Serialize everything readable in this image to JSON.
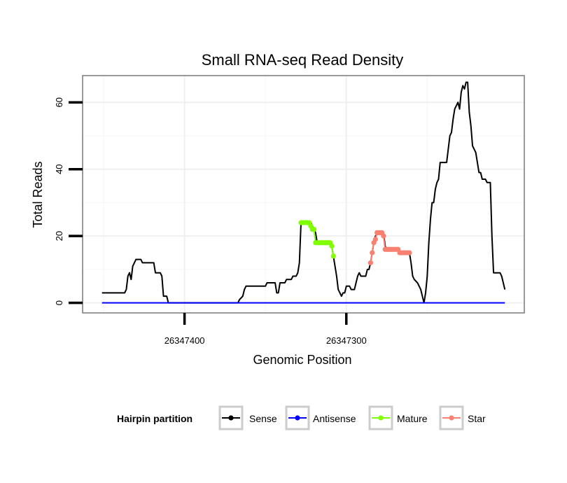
{
  "chart_data": {
    "type": "line",
    "title": "Small RNA-seq Read Density",
    "xlabel": "Genomic Position",
    "ylabel": "Total Reads",
    "xlim": [
      26347463,
      26347190
    ],
    "ylim": [
      -3,
      68
    ],
    "x_reversed": true,
    "x_ticks": [
      {
        "value": 26347400,
        "label": "26347400"
      },
      {
        "value": 26347300,
        "label": "26347300"
      }
    ],
    "y_ticks": [
      {
        "value": 0,
        "label": "0"
      },
      {
        "value": 20,
        "label": "20"
      },
      {
        "value": 40,
        "label": "40"
      },
      {
        "value": 60,
        "label": "60"
      }
    ],
    "grid": true,
    "legend": {
      "title": "Hairpin partition",
      "position": "bottom",
      "entries": [
        {
          "label": "Sense",
          "color": "#000000"
        },
        {
          "label": "Antisense",
          "color": "#0000ff"
        },
        {
          "label": "Mature",
          "color": "#7fff00"
        },
        {
          "label": "Star",
          "color": "#fa8072"
        }
      ]
    },
    "series": [
      {
        "name": "Sense",
        "color": "#000000",
        "style": "line",
        "points": [
          [
            26347451,
            3
          ],
          [
            26347437,
            3
          ],
          [
            26347436,
            4
          ],
          [
            26347435,
            8
          ],
          [
            26347434,
            9
          ],
          [
            26347433,
            7
          ],
          [
            26347432,
            11
          ],
          [
            26347431,
            12
          ],
          [
            26347430,
            13
          ],
          [
            26347427,
            13
          ],
          [
            26347426,
            12
          ],
          [
            26347419,
            12
          ],
          [
            26347418,
            9
          ],
          [
            26347415,
            9
          ],
          [
            26347414,
            8
          ],
          [
            26347413,
            2
          ],
          [
            26347411,
            2
          ],
          [
            26347410,
            0
          ],
          [
            26347380,
            0
          ],
          [
            26347367,
            0
          ],
          [
            26347366,
            1
          ],
          [
            26347364,
            2
          ],
          [
            26347363,
            4
          ],
          [
            26347362,
            5
          ],
          [
            26347350,
            5
          ],
          [
            26347349,
            6
          ],
          [
            26347344,
            6
          ],
          [
            26347343,
            3
          ],
          [
            26347342,
            3
          ],
          [
            26347341,
            6
          ],
          [
            26347338,
            6
          ],
          [
            26347337,
            7
          ],
          [
            26347334,
            7
          ],
          [
            26347333,
            8
          ],
          [
            26347331,
            8
          ],
          [
            26347330,
            9
          ],
          [
            26347329,
            12
          ],
          [
            26347328,
            24
          ],
          [
            26347322,
            24
          ],
          [
            26347320,
            22
          ],
          [
            26347319,
            21
          ],
          [
            26347318,
            18
          ],
          [
            26347310,
            18
          ],
          [
            26347309,
            17
          ],
          [
            26347308,
            14
          ],
          [
            26347306,
            8
          ],
          [
            26347305,
            4
          ],
          [
            26347304,
            3
          ],
          [
            26347303,
            2
          ],
          [
            26347302,
            3
          ],
          [
            26347301,
            3
          ],
          [
            26347300,
            5
          ],
          [
            26347298,
            5
          ],
          [
            26347297,
            4
          ],
          [
            26347295,
            4
          ],
          [
            26347294,
            6
          ],
          [
            26347293,
            8
          ],
          [
            26347292,
            9
          ],
          [
            26347291,
            8
          ],
          [
            26347288,
            8
          ],
          [
            26347287,
            10
          ],
          [
            26347286,
            10
          ],
          [
            26347285,
            12
          ],
          [
            26347284,
            15
          ],
          [
            26347283,
            18
          ],
          [
            26347282,
            20
          ],
          [
            26347280,
            21
          ],
          [
            26347277,
            21
          ],
          [
            26347276,
            17
          ],
          [
            26347275,
            16
          ],
          [
            26347268,
            16
          ],
          [
            26347267,
            15
          ],
          [
            26347261,
            15
          ],
          [
            26347260,
            12
          ],
          [
            26347259,
            8
          ],
          [
            26347258,
            7
          ],
          [
            26347256,
            6
          ],
          [
            26347254,
            4
          ],
          [
            26347253,
            2
          ],
          [
            26347252,
            0
          ],
          [
            26347251,
            3
          ],
          [
            26347250,
            8
          ],
          [
            26347249,
            18
          ],
          [
            26347248,
            25
          ],
          [
            26347247,
            30
          ],
          [
            26347246,
            30
          ],
          [
            26347245,
            34
          ],
          [
            26347244,
            36
          ],
          [
            26347243,
            37
          ],
          [
            26347242,
            42
          ],
          [
            26347238,
            42
          ],
          [
            26347237,
            46
          ],
          [
            26347236,
            50
          ],
          [
            26347235,
            51
          ],
          [
            26347234,
            55
          ],
          [
            26347233,
            58
          ],
          [
            26347232,
            59
          ],
          [
            26347231,
            60
          ],
          [
            26347230,
            58
          ],
          [
            26347229,
            63
          ],
          [
            26347228,
            65
          ],
          [
            26347227,
            64
          ],
          [
            26347226,
            66
          ],
          [
            26347225,
            66
          ],
          [
            26347224,
            57
          ],
          [
            26347223,
            53
          ],
          [
            26347222,
            47
          ],
          [
            26347221,
            46
          ],
          [
            26347220,
            45
          ],
          [
            26347219,
            42
          ],
          [
            26347218,
            39
          ],
          [
            26347217,
            39
          ],
          [
            26347216,
            37
          ],
          [
            26347214,
            37
          ],
          [
            26347213,
            36
          ],
          [
            26347211,
            36
          ],
          [
            26347210,
            20
          ],
          [
            26347209,
            9
          ],
          [
            26347205,
            9
          ],
          [
            26347204,
            8
          ],
          [
            26347203,
            6
          ],
          [
            26347202,
            4
          ]
        ]
      },
      {
        "name": "Antisense",
        "color": "#0000ff",
        "style": "line",
        "points": [
          [
            26347451,
            0
          ],
          [
            26347202,
            0
          ]
        ]
      },
      {
        "name": "Mature",
        "color": "#7fff00",
        "style": "line-points",
        "points": [
          [
            26347328,
            24
          ],
          [
            26347327,
            24
          ],
          [
            26347326,
            24
          ],
          [
            26347325,
            24
          ],
          [
            26347324,
            24
          ],
          [
            26347323,
            24
          ],
          [
            26347322,
            23
          ],
          [
            26347321,
            22
          ],
          [
            26347320,
            22
          ],
          [
            26347319,
            18
          ],
          [
            26347318,
            18
          ],
          [
            26347317,
            18
          ],
          [
            26347316,
            18
          ],
          [
            26347315,
            18
          ],
          [
            26347314,
            18
          ],
          [
            26347313,
            18
          ],
          [
            26347312,
            18
          ],
          [
            26347311,
            18
          ],
          [
            26347310,
            18
          ],
          [
            26347309,
            17
          ],
          [
            26347308,
            14
          ]
        ]
      },
      {
        "name": "Star",
        "color": "#fa8072",
        "style": "line-points",
        "points": [
          [
            26347285,
            12
          ],
          [
            26347284,
            15
          ],
          [
            26347283,
            18
          ],
          [
            26347282,
            19
          ],
          [
            26347281,
            21
          ],
          [
            26347280,
            21
          ],
          [
            26347279,
            21
          ],
          [
            26347278,
            21
          ],
          [
            26347277,
            20
          ],
          [
            26347276,
            16
          ],
          [
            26347275,
            16
          ],
          [
            26347274,
            16
          ],
          [
            26347273,
            16
          ],
          [
            26347272,
            16
          ],
          [
            26347271,
            16
          ],
          [
            26347270,
            16
          ],
          [
            26347269,
            16
          ],
          [
            26347268,
            16
          ],
          [
            26347267,
            15
          ],
          [
            26347266,
            15
          ],
          [
            26347265,
            15
          ],
          [
            26347264,
            15
          ],
          [
            26347263,
            15
          ],
          [
            26347262,
            15
          ],
          [
            26347261,
            15
          ]
        ]
      }
    ]
  }
}
